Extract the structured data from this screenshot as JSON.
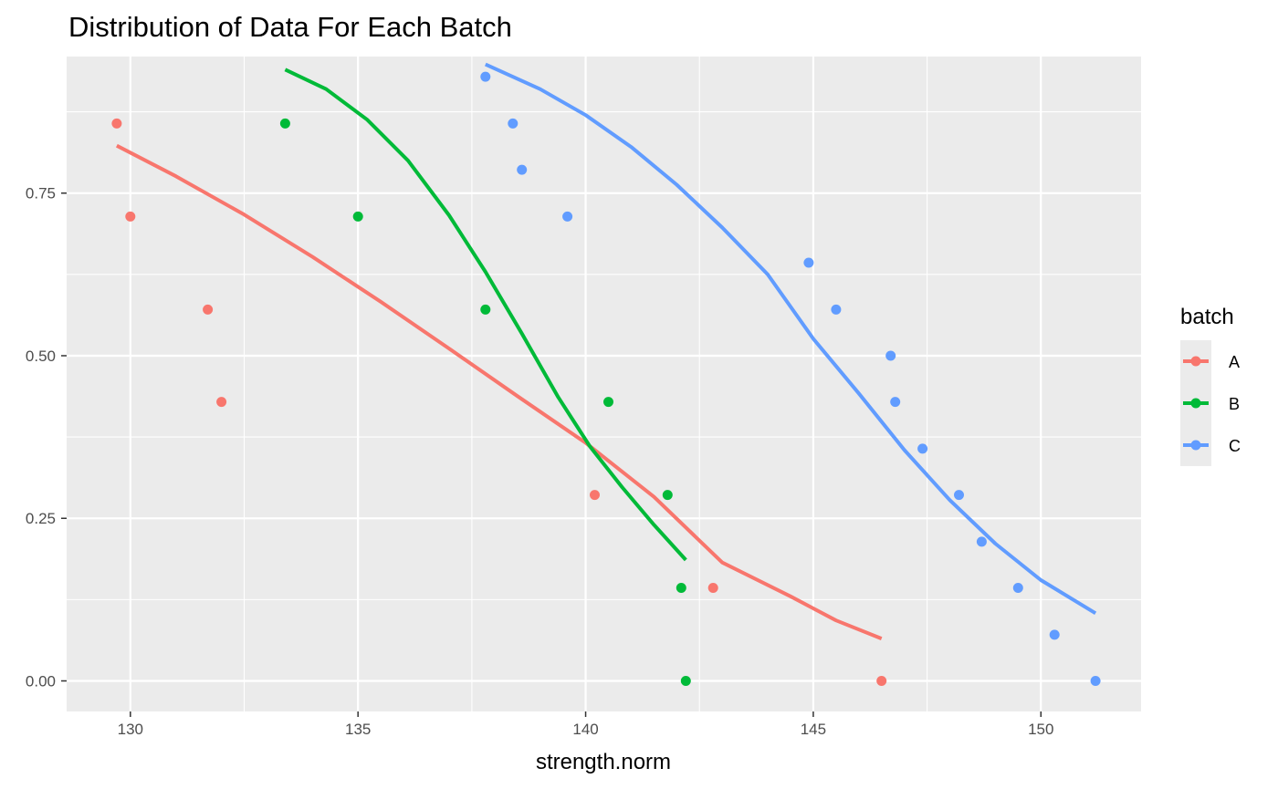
{
  "chart_data": {
    "type": "scatter",
    "title": "Distribution of Data For Each Batch",
    "xlabel": "strength.norm",
    "ylabel": "",
    "xlim": [
      128.6,
      152.2
    ],
    "ylim": [
      -0.047,
      0.96
    ],
    "x_ticks": [
      130,
      135,
      140,
      145,
      150
    ],
    "x_tick_labels": [
      "130",
      "135",
      "140",
      "145",
      "150"
    ],
    "y_ticks": [
      0.0,
      0.25,
      0.5,
      0.75
    ],
    "y_tick_labels": [
      "0.00",
      "0.25",
      "0.50",
      "0.75"
    ],
    "grid": true,
    "legend": {
      "title": "batch",
      "placement": "right"
    },
    "series": [
      {
        "name": "A",
        "color": "#F8766D",
        "points": [
          [
            129.7,
            0.857
          ],
          [
            130.0,
            0.714
          ],
          [
            131.7,
            0.571
          ],
          [
            132.0,
            0.429
          ],
          [
            140.2,
            0.286
          ],
          [
            142.8,
            0.143
          ],
          [
            146.5,
            0.0
          ]
        ],
        "curve": [
          [
            129.7,
            0.823
          ],
          [
            131.0,
            0.776
          ],
          [
            132.5,
            0.717
          ],
          [
            134.0,
            0.652
          ],
          [
            135.5,
            0.583
          ],
          [
            137.0,
            0.511
          ],
          [
            138.5,
            0.438
          ],
          [
            140.0,
            0.366
          ],
          [
            141.5,
            0.283
          ],
          [
            143.0,
            0.182
          ],
          [
            144.5,
            0.13
          ],
          [
            145.5,
            0.093
          ],
          [
            146.5,
            0.065
          ]
        ]
      },
      {
        "name": "B",
        "color": "#00BA38",
        "points": [
          [
            133.4,
            0.857
          ],
          [
            135.0,
            0.714
          ],
          [
            137.8,
            0.571
          ],
          [
            140.5,
            0.429
          ],
          [
            141.8,
            0.286
          ],
          [
            142.1,
            0.143
          ],
          [
            142.2,
            0.0
          ]
        ],
        "curve": [
          [
            133.4,
            0.94
          ],
          [
            134.3,
            0.91
          ],
          [
            135.2,
            0.863
          ],
          [
            136.1,
            0.8
          ],
          [
            137.0,
            0.716
          ],
          [
            137.8,
            0.629
          ],
          [
            138.6,
            0.534
          ],
          [
            139.4,
            0.436
          ],
          [
            140.1,
            0.36
          ],
          [
            140.8,
            0.298
          ],
          [
            141.5,
            0.24
          ],
          [
            142.2,
            0.186
          ]
        ]
      },
      {
        "name": "C",
        "color": "#619CFF",
        "points": [
          [
            137.8,
            0.929
          ],
          [
            138.4,
            0.857
          ],
          [
            138.6,
            0.786
          ],
          [
            139.6,
            0.714
          ],
          [
            144.9,
            0.643
          ],
          [
            145.5,
            0.571
          ],
          [
            146.7,
            0.5
          ],
          [
            146.8,
            0.429
          ],
          [
            147.4,
            0.357
          ],
          [
            148.2,
            0.286
          ],
          [
            148.7,
            0.214
          ],
          [
            149.5,
            0.143
          ],
          [
            150.3,
            0.071
          ],
          [
            151.2,
            0.0
          ]
        ],
        "curve": [
          [
            137.8,
            0.948
          ],
          [
            139.0,
            0.91
          ],
          [
            140.0,
            0.87
          ],
          [
            141.0,
            0.821
          ],
          [
            142.0,
            0.763
          ],
          [
            143.0,
            0.697
          ],
          [
            144.0,
            0.625
          ],
          [
            145.0,
            0.526
          ],
          [
            146.0,
            0.442
          ],
          [
            147.0,
            0.355
          ],
          [
            148.0,
            0.278
          ],
          [
            149.0,
            0.211
          ],
          [
            150.0,
            0.155
          ],
          [
            151.2,
            0.104
          ]
        ]
      }
    ]
  }
}
